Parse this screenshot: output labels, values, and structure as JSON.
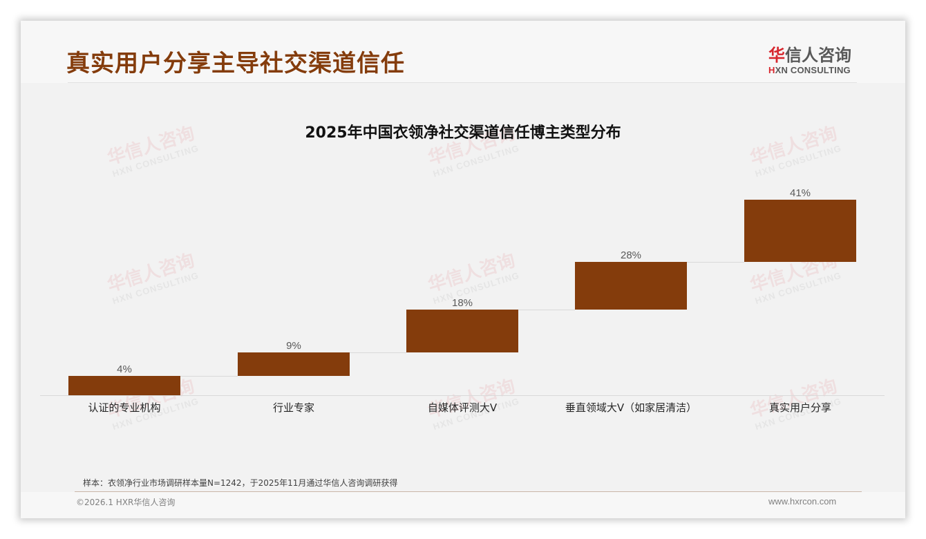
{
  "header": {
    "title": "真实用户分享主导社交渠道信任",
    "logo": {
      "cn_first": "华",
      "cn_rest": "信人咨询",
      "en_mark": "H",
      "en_rest": "XN CONSULTING"
    }
  },
  "watermark": {
    "cn": "华信人咨询",
    "en": "HXN CONSULTING"
  },
  "chart_data": {
    "type": "bar",
    "subtype": "waterfall-style stepped bars",
    "title": "2025年中国衣领净社交渠道信任博主类型分布",
    "categories": [
      "认证的专业机构",
      "行业专家",
      "自媒体评测大V",
      "垂直领域大V（如家居清洁）",
      "真实用户分享"
    ],
    "values": [
      4,
      9,
      18,
      28,
      41
    ],
    "value_labels": [
      "4%",
      "9%",
      "18%",
      "28%",
      "41%"
    ],
    "unit": "%",
    "xlabel": "",
    "ylabel": "",
    "grid": false,
    "legend": "none",
    "bar_color": "#843c0c",
    "note": "bars are floating: each bar spans from previous cumulative level to its own value"
  },
  "footer": {
    "note": "样本：衣领净行业市场调研样本量N=1242，于2025年11月通过华信人咨询调研获得",
    "copyright": "©2026.1 HXR华信人咨询",
    "website": "www.hxrcon.com"
  }
}
